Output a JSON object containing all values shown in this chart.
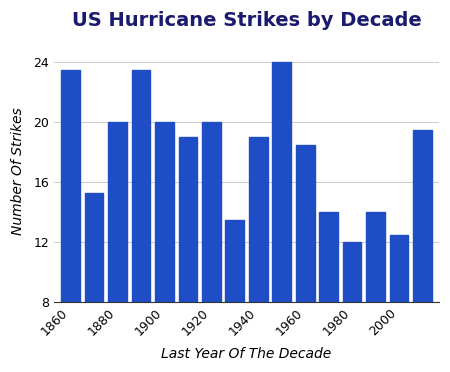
{
  "title": "US Hurricane Strikes by Decade",
  "xlabel": "Last Year Of The Decade",
  "ylabel": "Number Of Strikes",
  "categories": [
    1860,
    1870,
    1880,
    1890,
    1900,
    1910,
    1920,
    1930,
    1940,
    1950,
    1960,
    1970,
    1980,
    1990,
    2000,
    2010
  ],
  "values": [
    23.5,
    15.3,
    20,
    23.5,
    20,
    19,
    20,
    13.5,
    19,
    24,
    18.5,
    14,
    12,
    14,
    12.5,
    19.5
  ],
  "bar_color": "#1f4dc5",
  "background_color": "#ffffff",
  "ylim": [
    8,
    25.5
  ],
  "yticks": [
    8,
    12,
    16,
    20,
    24
  ],
  "xtick_labels": [
    "1860",
    "1880",
    "1900",
    "1920",
    "1940",
    "1960",
    "1980",
    "2000"
  ],
  "xtick_positions": [
    1860,
    1880,
    1900,
    1920,
    1940,
    1960,
    1980,
    2000
  ],
  "title_fontsize": 14,
  "label_fontsize": 10,
  "tick_fontsize": 9,
  "title_color": "#1a1a6e"
}
